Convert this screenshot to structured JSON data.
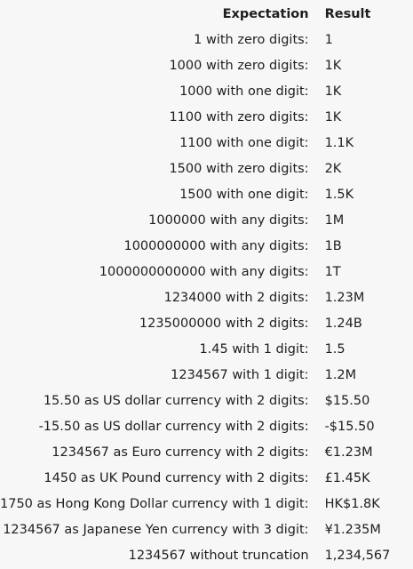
{
  "headers": {
    "expectation": "Expectation",
    "result": "Result"
  },
  "rows": [
    {
      "expectation": "1 with zero digits:",
      "result": "1"
    },
    {
      "expectation": "1000 with zero digits:",
      "result": "1K"
    },
    {
      "expectation": "1000 with one digit:",
      "result": "1K"
    },
    {
      "expectation": "1100 with zero digits:",
      "result": "1K"
    },
    {
      "expectation": "1100 with one digit:",
      "result": "1.1K"
    },
    {
      "expectation": "1500 with zero digits:",
      "result": " 2K"
    },
    {
      "expectation": "1500 with one digit:",
      "result": "1.5K"
    },
    {
      "expectation": "1000000 with any digits:",
      "result": "1M"
    },
    {
      "expectation": "1000000000 with any digits:",
      "result": "1B"
    },
    {
      "expectation": "1000000000000 with any digits:",
      "result": "1T"
    },
    {
      "expectation": "1234000 with 2 digits:",
      "result": "1.23M"
    },
    {
      "expectation": "1235000000 with 2 digits:",
      "result": "1.24B"
    },
    {
      "expectation": "1.45 with 1 digit:",
      "result": "1.5"
    },
    {
      "expectation": "1234567 with 1 digit:",
      "result": "1.2M"
    },
    {
      "expectation": "15.50 as US dollar currency with 2 digits:",
      "result": "$15.50"
    },
    {
      "expectation": "-15.50 as US dollar currency with 2 digits:",
      "result": "-$15.50"
    },
    {
      "expectation": "1234567 as Euro currency with 2 digits:",
      "result": "€1.23M"
    },
    {
      "expectation": "1450 as UK Pound currency with 2 digits:",
      "result": "£1.45K"
    },
    {
      "expectation": "1750 as Hong Kong Dollar currency with 1 digit:",
      "result": "HK$1.8K"
    },
    {
      "expectation": "1234567 as Japanese Yen currency with 3 digit:",
      "result": "¥1.235M"
    },
    {
      "expectation": "1234567 without truncation",
      "result": "1,234,567"
    }
  ]
}
